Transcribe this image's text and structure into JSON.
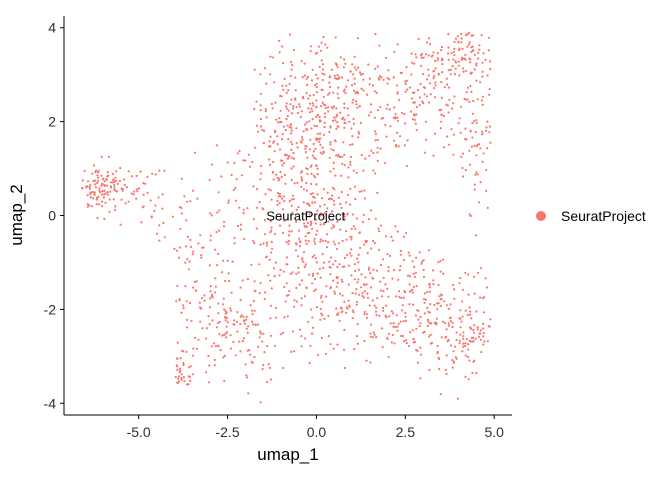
{
  "chart_data": {
    "type": "scatter",
    "xlabel": "umap_1",
    "ylabel": "umap_2",
    "xlim": [
      -7.1,
      5.5
    ],
    "ylim": [
      -4.25,
      4.25
    ],
    "x_ticks": [
      -5.0,
      -2.5,
      0.0,
      2.5,
      5.0
    ],
    "x_tick_labels": [
      "-5.0",
      "-2.5",
      "0.0",
      "2.5",
      "5.0"
    ],
    "y_ticks": [
      -4,
      -2,
      0,
      2,
      4
    ],
    "y_tick_labels": [
      "-4",
      "-2",
      "0",
      "2",
      "4"
    ],
    "grid": false,
    "legend_position": "right",
    "series": [
      {
        "name": "SeuratProject",
        "color": "#F8766D",
        "point_count": 1900
      }
    ],
    "annotations": [
      {
        "text": "SeuratProject",
        "x": -0.3,
        "y": 0.0
      }
    ]
  }
}
